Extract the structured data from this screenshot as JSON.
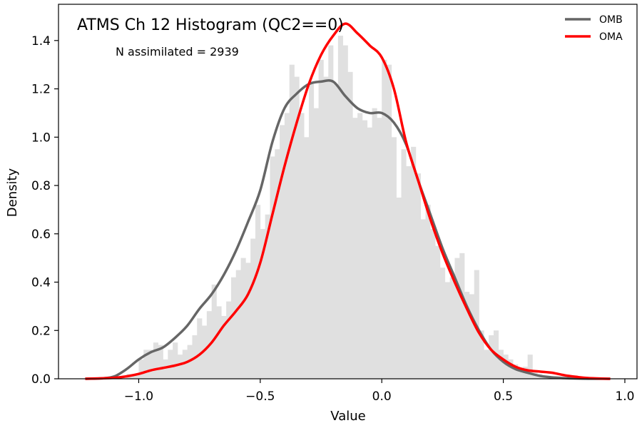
{
  "chart_data": {
    "type": "histogram",
    "title": "ATMS Ch 12 Histogram (QC2==0)",
    "annotation": "N assimilated = 2939",
    "xlabel": "Value",
    "ylabel": "Density",
    "xlim": [
      -1.33,
      1.05
    ],
    "ylim": [
      0,
      1.55
    ],
    "xticks": [
      -1.0,
      -0.5,
      0.0,
      0.5,
      1.0
    ],
    "xtick_labels": [
      "−1.0",
      "−0.5",
      "0.0",
      "0.5",
      "1.0"
    ],
    "yticks": [
      0.0,
      0.2,
      0.4,
      0.6,
      0.8,
      1.0,
      1.2,
      1.4
    ],
    "ytick_labels": [
      "0.0",
      "0.2",
      "0.4",
      "0.6",
      "0.8",
      "1.0",
      "1.2",
      "1.4"
    ],
    "grid": false,
    "legend_position": "top-right",
    "histogram": {
      "color": "#e0e0e0",
      "bin_edges": [
        -1.05,
        -1.0,
        -0.98,
        -0.96,
        -0.94,
        -0.92,
        -0.9,
        -0.88,
        -0.86,
        -0.84,
        -0.82,
        -0.8,
        -0.78,
        -0.76,
        -0.74,
        -0.72,
        -0.7,
        -0.68,
        -0.66,
        -0.64,
        -0.62,
        -0.6,
        -0.58,
        -0.56,
        -0.54,
        -0.52,
        -0.5,
        -0.48,
        -0.46,
        -0.44,
        -0.42,
        -0.4,
        -0.38,
        -0.36,
        -0.34,
        -0.32,
        -0.3,
        -0.28,
        -0.26,
        -0.24,
        -0.22,
        -0.2,
        -0.18,
        -0.16,
        -0.14,
        -0.12,
        -0.1,
        -0.08,
        -0.06,
        -0.04,
        -0.02,
        0.0,
        0.02,
        0.04,
        0.06,
        0.08,
        0.1,
        0.12,
        0.14,
        0.16,
        0.18,
        0.2,
        0.22,
        0.24,
        0.26,
        0.28,
        0.3,
        0.32,
        0.34,
        0.36,
        0.38,
        0.4,
        0.42,
        0.44,
        0.46,
        0.48,
        0.5,
        0.52,
        0.54,
        0.56,
        0.58,
        0.6,
        0.62,
        0.64,
        0.66,
        0.68,
        0.7
      ],
      "densities": [
        0.02,
        0.08,
        0.12,
        0.12,
        0.15,
        0.14,
        0.08,
        0.12,
        0.15,
        0.1,
        0.12,
        0.14,
        0.18,
        0.25,
        0.22,
        0.28,
        0.39,
        0.3,
        0.26,
        0.32,
        0.42,
        0.45,
        0.5,
        0.48,
        0.58,
        0.72,
        0.62,
        0.68,
        0.92,
        0.95,
        1.05,
        1.1,
        1.3,
        1.25,
        1.1,
        1.0,
        1.22,
        1.12,
        1.32,
        1.25,
        1.38,
        1.22,
        1.42,
        1.38,
        1.27,
        1.08,
        1.1,
        1.07,
        1.04,
        1.12,
        1.08,
        1.32,
        1.3,
        1.0,
        0.75,
        0.95,
        0.88,
        0.96,
        0.85,
        0.66,
        0.72,
        0.62,
        0.55,
        0.46,
        0.4,
        0.42,
        0.5,
        0.52,
        0.36,
        0.35,
        0.45,
        0.2,
        0.12,
        0.18,
        0.2,
        0.12,
        0.1,
        0.08,
        0.06,
        0.04,
        0.05,
        0.1,
        0.03,
        0.02,
        0.01,
        0.01
      ]
    },
    "series": [
      {
        "name": "OMB",
        "color": "#666666",
        "x": [
          -1.22,
          -1.15,
          -1.1,
          -1.05,
          -1.0,
          -0.95,
          -0.9,
          -0.85,
          -0.8,
          -0.75,
          -0.7,
          -0.65,
          -0.6,
          -0.55,
          -0.5,
          -0.45,
          -0.4,
          -0.35,
          -0.3,
          -0.25,
          -0.2,
          -0.15,
          -0.1,
          -0.05,
          0.0,
          0.05,
          0.1,
          0.15,
          0.2,
          0.25,
          0.3,
          0.35,
          0.4,
          0.45,
          0.5,
          0.55,
          0.6,
          0.65,
          0.7,
          0.75,
          0.8,
          0.85,
          0.94
        ],
        "y": [
          0.0,
          0.002,
          0.01,
          0.04,
          0.08,
          0.11,
          0.13,
          0.17,
          0.22,
          0.29,
          0.35,
          0.43,
          0.53,
          0.65,
          0.78,
          0.98,
          1.12,
          1.18,
          1.22,
          1.23,
          1.23,
          1.17,
          1.12,
          1.1,
          1.1,
          1.06,
          0.97,
          0.82,
          0.68,
          0.54,
          0.42,
          0.3,
          0.2,
          0.12,
          0.07,
          0.04,
          0.025,
          0.012,
          0.006,
          0.003,
          0.001,
          0.0,
          0.0
        ]
      },
      {
        "name": "OMA",
        "color": "#ff0000",
        "x": [
          -1.22,
          -1.15,
          -1.1,
          -1.05,
          -1.0,
          -0.95,
          -0.9,
          -0.85,
          -0.8,
          -0.75,
          -0.7,
          -0.65,
          -0.6,
          -0.55,
          -0.5,
          -0.45,
          -0.4,
          -0.35,
          -0.3,
          -0.25,
          -0.2,
          -0.15,
          -0.1,
          -0.05,
          0.0,
          0.05,
          0.1,
          0.15,
          0.2,
          0.25,
          0.3,
          0.35,
          0.4,
          0.45,
          0.5,
          0.55,
          0.6,
          0.65,
          0.7,
          0.75,
          0.8,
          0.85,
          0.94
        ],
        "y": [
          0.0,
          0.002,
          0.004,
          0.01,
          0.02,
          0.035,
          0.045,
          0.055,
          0.07,
          0.1,
          0.15,
          0.22,
          0.28,
          0.35,
          0.48,
          0.68,
          0.88,
          1.06,
          1.22,
          1.34,
          1.42,
          1.47,
          1.43,
          1.38,
          1.33,
          1.2,
          0.98,
          0.82,
          0.66,
          0.52,
          0.4,
          0.29,
          0.19,
          0.12,
          0.08,
          0.05,
          0.035,
          0.03,
          0.025,
          0.015,
          0.008,
          0.003,
          0.0
        ]
      }
    ]
  }
}
